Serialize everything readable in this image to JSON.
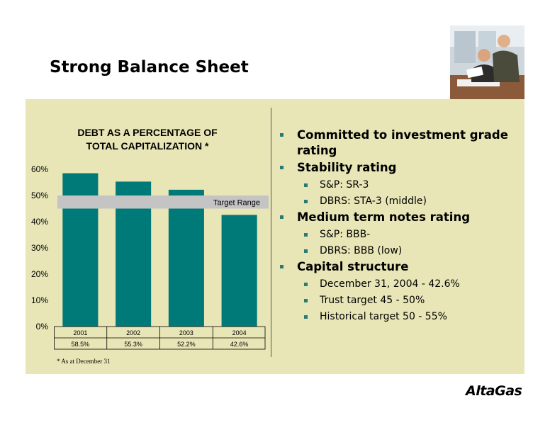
{
  "slide": {
    "title": "Strong Balance Sheet",
    "footnote": "* As at December 31",
    "logo": "AltaGas"
  },
  "chart_data": {
    "type": "bar",
    "title_line1": "DEBT AS A PERCENTAGE OF",
    "title_line2": "TOTAL CAPITALIZATION *",
    "categories": [
      "2001",
      "2002",
      "2003",
      "2004"
    ],
    "values": [
      58.5,
      55.3,
      52.2,
      42.6
    ],
    "value_labels": [
      "58.5%",
      "55.3%",
      "52.2%",
      "42.6%"
    ],
    "ylim": [
      0,
      60
    ],
    "y_ticks": [
      0,
      10,
      20,
      30,
      40,
      50,
      60
    ],
    "y_tick_labels": [
      "0%",
      "10%",
      "20%",
      "30%",
      "40%",
      "50%",
      "60%"
    ],
    "target_range": {
      "label": "Target Range",
      "from": 45,
      "to": 50
    },
    "bar_color": "#007a78",
    "band_color": "#c4c4c4"
  },
  "bullets": [
    {
      "level": 1,
      "text": "Committed to investment grade rating"
    },
    {
      "level": 1,
      "text": "Stability rating"
    },
    {
      "level": 2,
      "text": "S&P: SR-3"
    },
    {
      "level": 2,
      "text": "DBRS: STA-3 (middle)"
    },
    {
      "level": 1,
      "text": "Medium term notes rating"
    },
    {
      "level": 2,
      "text": "S&P: BBB-"
    },
    {
      "level": 2,
      "text": "DBRS: BBB (low)"
    },
    {
      "level": 1,
      "text": "Capital structure"
    },
    {
      "level": 2,
      "text": "December 31, 2004 - 42.6%"
    },
    {
      "level": 2,
      "text": "Trust target 45 - 50%"
    },
    {
      "level": 2,
      "text": "Historical target 50 - 55%"
    }
  ],
  "colors": {
    "panel": "#e8e6b6",
    "bullet": "#2a7a75"
  }
}
